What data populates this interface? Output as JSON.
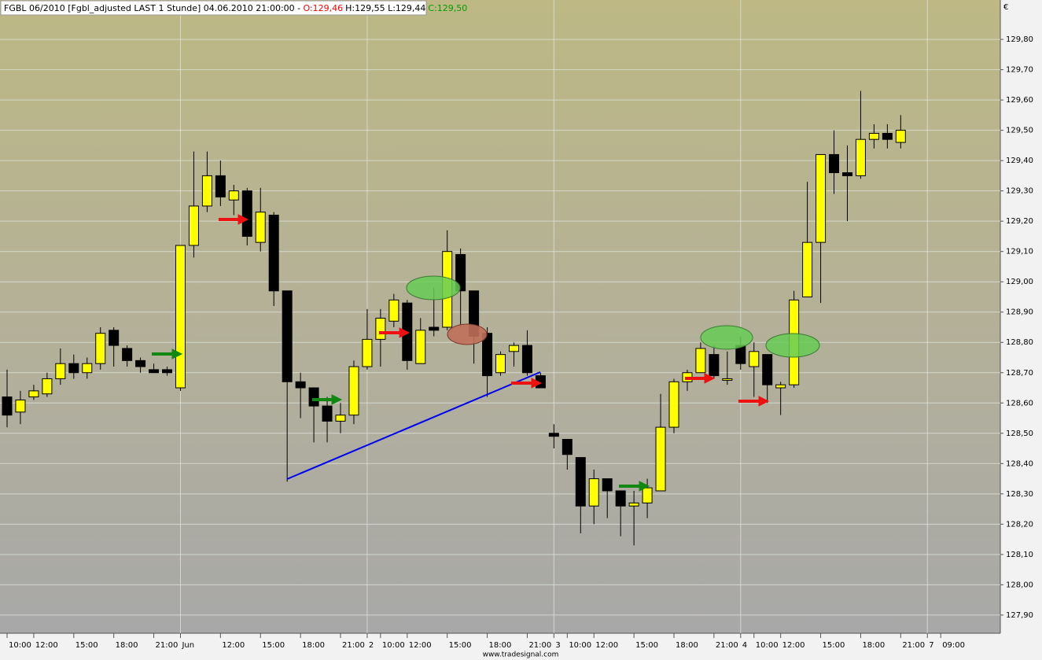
{
  "chart_data": {
    "type": "candlestick",
    "title_segments": [
      {
        "text": "FGBL 06/2010 [Fgbl_adjusted LAST 1 Stunde] 04.06.2010 21:00:00 -",
        "color": "#000000"
      },
      {
        "text": "O:129,46",
        "color": "#ff0000"
      },
      {
        "text": "H:129,55 L:129,44",
        "color": "#000000"
      },
      {
        "text": "C:129,50",
        "color": "#00a000"
      }
    ],
    "y_unit": "€",
    "footer": "www.tradesignal.com",
    "up_color": "#ffff00",
    "down_color": "#000000",
    "grid": true,
    "categories": [
      "10:00",
      null,
      "12:00",
      null,
      null,
      "15:00",
      null,
      null,
      "18:00",
      null,
      null,
      "21:00",
      null,
      "Jun",
      null,
      null,
      "12:00",
      null,
      null,
      "15:00",
      null,
      null,
      "18:00",
      null,
      null,
      "21:00",
      null,
      "2",
      "10:00",
      null,
      "12:00",
      null,
      null,
      "15:00",
      null,
      null,
      "18:00",
      null,
      null,
      "21:00",
      null,
      "3",
      "10:00",
      null,
      "12:00",
      null,
      null,
      "15:00",
      null,
      null,
      "18:00",
      null,
      null,
      "21:00",
      null,
      "4",
      "10:00",
      null,
      "12:00",
      null,
      null,
      "15:00",
      null,
      null,
      "18:00",
      null,
      null,
      "21:00",
      null,
      "7",
      "09:00",
      null,
      null,
      null,
      null
    ],
    "open": [
      128.62,
      128.57,
      128.62,
      128.63,
      128.68,
      128.73,
      128.7,
      128.73,
      128.84,
      128.78,
      128.74,
      128.71,
      128.71,
      128.65,
      129.12,
      129.25,
      129.35,
      129.27,
      129.3,
      129.13,
      129.22,
      128.97,
      128.67,
      128.65,
      128.59,
      128.54,
      128.56,
      128.72,
      128.81,
      128.87,
      128.93,
      128.73,
      128.85,
      128.85,
      129.09,
      128.97,
      128.83,
      128.7,
      128.77,
      128.79,
      128.69,
      128.5,
      128.48,
      128.42,
      128.26,
      128.35,
      128.31,
      128.26,
      128.27,
      128.31,
      128.52,
      128.67,
      128.7,
      128.76,
      128.68,
      128.79,
      128.72,
      128.76,
      128.65,
      128.66,
      128.95,
      129.13,
      129.42,
      129.36,
      129.35,
      129.47,
      129.49,
      129.46,
      null,
      null,
      null,
      null,
      null,
      null,
      null
    ],
    "high": [
      128.71,
      128.64,
      128.66,
      128.7,
      128.78,
      128.76,
      128.75,
      128.85,
      128.85,
      128.79,
      128.75,
      128.73,
      128.72,
      129.12,
      129.43,
      129.43,
      129.4,
      129.32,
      129.31,
      129.31,
      129.23,
      128.97,
      128.7,
      128.65,
      128.62,
      128.6,
      128.74,
      128.91,
      128.91,
      128.96,
      128.94,
      128.88,
      128.98,
      129.17,
      129.11,
      128.97,
      128.85,
      128.77,
      128.8,
      128.84,
      128.7,
      128.53,
      128.48,
      128.42,
      128.38,
      128.35,
      128.31,
      128.31,
      128.35,
      128.63,
      128.68,
      128.71,
      128.8,
      128.79,
      128.77,
      128.82,
      128.8,
      128.76,
      128.67,
      128.97,
      129.33,
      129.42,
      129.5,
      129.45,
      129.63,
      129.52,
      129.52,
      129.55,
      null,
      null,
      null,
      null,
      null,
      null,
      null
    ],
    "low": [
      128.52,
      128.53,
      128.61,
      128.62,
      128.66,
      128.68,
      128.68,
      128.71,
      128.72,
      128.72,
      128.7,
      128.7,
      128.69,
      128.64,
      129.08,
      129.23,
      129.25,
      129.22,
      129.12,
      129.1,
      128.92,
      128.34,
      128.55,
      128.47,
      128.47,
      128.5,
      128.53,
      128.71,
      128.72,
      128.85,
      128.71,
      128.73,
      128.82,
      128.84,
      128.85,
      128.73,
      128.62,
      128.69,
      128.72,
      128.69,
      128.65,
      128.45,
      128.38,
      128.17,
      128.2,
      128.22,
      128.16,
      128.13,
      128.22,
      128.31,
      128.5,
      128.64,
      128.7,
      128.68,
      128.66,
      128.71,
      128.62,
      128.6,
      128.56,
      128.65,
      128.95,
      128.93,
      129.29,
      129.2,
      129.34,
      129.44,
      129.44,
      129.44,
      null,
      null,
      null,
      null,
      null,
      null,
      null
    ],
    "close": [
      128.56,
      128.61,
      128.64,
      128.68,
      128.73,
      128.7,
      128.73,
      128.83,
      128.79,
      128.74,
      128.72,
      128.7,
      128.7,
      129.12,
      129.25,
      129.35,
      129.28,
      129.3,
      129.15,
      129.23,
      128.97,
      128.67,
      128.65,
      128.59,
      128.54,
      128.56,
      128.72,
      128.81,
      128.88,
      128.94,
      128.74,
      128.84,
      128.84,
      129.1,
      128.97,
      128.82,
      128.69,
      128.76,
      128.79,
      128.7,
      128.65,
      128.49,
      128.43,
      128.26,
      128.35,
      128.31,
      128.26,
      128.27,
      128.32,
      128.52,
      128.67,
      128.7,
      128.78,
      128.69,
      128.68,
      128.73,
      128.77,
      128.66,
      128.66,
      128.94,
      129.13,
      129.42,
      129.36,
      129.35,
      129.47,
      129.49,
      129.47,
      129.5,
      null,
      null,
      null,
      null,
      null,
      null,
      null
    ],
    "ylim": [
      127.84,
      129.93
    ],
    "yticks": [
      {
        "value": 127.9,
        "label": "127,90"
      },
      {
        "value": 128.0,
        "label": "128,00"
      },
      {
        "value": 128.1,
        "label": "128,10"
      },
      {
        "value": 128.2,
        "label": "128,20"
      },
      {
        "value": 128.3,
        "label": "128,30"
      },
      {
        "value": 128.4,
        "label": "128,40"
      },
      {
        "value": 128.5,
        "label": "128,50"
      },
      {
        "value": 128.6,
        "label": "128,60"
      },
      {
        "value": 128.7,
        "label": "128,70"
      },
      {
        "value": 128.8,
        "label": "128,80"
      },
      {
        "value": 128.9,
        "label": "128,90"
      },
      {
        "value": 129.0,
        "label": "129,00"
      },
      {
        "value": 129.1,
        "label": "129,10"
      },
      {
        "value": 129.2,
        "label": "129,20"
      },
      {
        "value": 129.3,
        "label": "129,30"
      },
      {
        "value": 129.4,
        "label": "129,40"
      },
      {
        "value": 129.5,
        "label": "129,50"
      },
      {
        "value": 129.6,
        "label": "129,60"
      },
      {
        "value": 129.7,
        "label": "129,70"
      },
      {
        "value": 129.8,
        "label": "129,80"
      }
    ]
  }
}
